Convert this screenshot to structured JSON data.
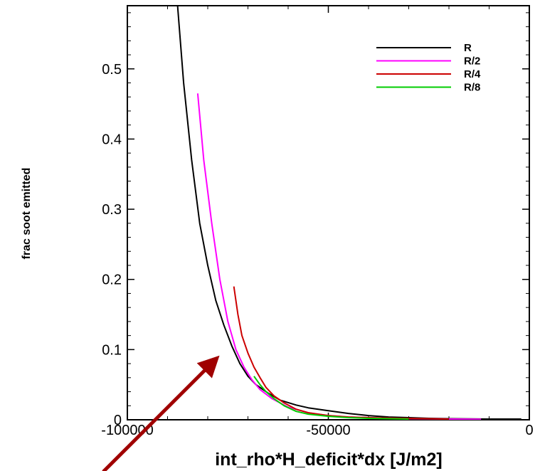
{
  "chart_data": {
    "type": "line",
    "xlabel": "int_rho*H_deficit*dx [J/m2]",
    "ylabel": "frac soot emitted",
    "xlim": [
      -100000,
      0
    ],
    "ylim": [
      0,
      0.59
    ],
    "x_ticks": [
      {
        "value": -100000,
        "label": "-100000"
      },
      {
        "value": -50000,
        "label": "-50000"
      },
      {
        "value": 0,
        "label": "0"
      }
    ],
    "y_ticks": [
      {
        "value": 0,
        "label": "0"
      },
      {
        "value": 0.1,
        "label": "0.1"
      },
      {
        "value": 0.2,
        "label": "0.2"
      },
      {
        "value": 0.3,
        "label": "0.3"
      },
      {
        "value": 0.4,
        "label": "0.4"
      },
      {
        "value": 0.5,
        "label": "0.5"
      }
    ],
    "grid": false,
    "legend_position": "top-right",
    "series": [
      {
        "name": "R",
        "color": "#000000",
        "points": [
          [
            -87500,
            0.59
          ],
          [
            -86000,
            0.48
          ],
          [
            -84000,
            0.37
          ],
          [
            -82000,
            0.28
          ],
          [
            -80000,
            0.22
          ],
          [
            -78000,
            0.17
          ],
          [
            -76000,
            0.135
          ],
          [
            -74000,
            0.105
          ],
          [
            -72000,
            0.08
          ],
          [
            -70000,
            0.062
          ],
          [
            -68000,
            0.05
          ],
          [
            -65000,
            0.038
          ],
          [
            -62000,
            0.028
          ],
          [
            -58000,
            0.021
          ],
          [
            -55000,
            0.017
          ],
          [
            -50000,
            0.013
          ],
          [
            -45000,
            0.009
          ],
          [
            -40000,
            0.006
          ],
          [
            -35000,
            0.004
          ],
          [
            -30000,
            0.003
          ],
          [
            -25000,
            0.002
          ],
          [
            -20000,
            0.0015
          ],
          [
            -10000,
            0.001
          ],
          [
            -2000,
            0.001
          ]
        ]
      },
      {
        "name": "R/2",
        "color": "#ff00ff",
        "points": [
          [
            -82500,
            0.465
          ],
          [
            -81000,
            0.37
          ],
          [
            -79000,
            0.28
          ],
          [
            -77000,
            0.2
          ],
          [
            -75000,
            0.14
          ],
          [
            -73000,
            0.1
          ],
          [
            -71000,
            0.075
          ],
          [
            -69000,
            0.057
          ],
          [
            -67000,
            0.043
          ],
          [
            -64000,
            0.03
          ],
          [
            -60000,
            0.018
          ],
          [
            -55000,
            0.01
          ],
          [
            -50000,
            0.006
          ],
          [
            -45000,
            0.004
          ],
          [
            -40000,
            0.003
          ],
          [
            -30000,
            0.0015
          ],
          [
            -20000,
            0.001
          ],
          [
            -12000,
            0.0008
          ]
        ]
      },
      {
        "name": "R/4",
        "color": "#cc0000",
        "points": [
          [
            -73500,
            0.19
          ],
          [
            -72500,
            0.15
          ],
          [
            -71500,
            0.12
          ],
          [
            -70000,
            0.095
          ],
          [
            -68500,
            0.075
          ],
          [
            -67000,
            0.06
          ],
          [
            -65500,
            0.046
          ],
          [
            -63500,
            0.034
          ],
          [
            -61000,
            0.024
          ],
          [
            -58000,
            0.015
          ],
          [
            -55000,
            0.01
          ],
          [
            -50000,
            0.006
          ],
          [
            -45000,
            0.004
          ],
          [
            -40000,
            0.003
          ],
          [
            -32000,
            0.002
          ],
          [
            -25000,
            0.0015
          ],
          [
            -20000,
            0.001
          ]
        ]
      },
      {
        "name": "R/8",
        "color": "#00cc00",
        "points": [
          [
            -68500,
            0.062
          ],
          [
            -67000,
            0.05
          ],
          [
            -65500,
            0.04
          ],
          [
            -63500,
            0.03
          ],
          [
            -61000,
            0.02
          ],
          [
            -58000,
            0.012
          ],
          [
            -55000,
            0.008
          ],
          [
            -50000,
            0.005
          ],
          [
            -45000,
            0.003
          ],
          [
            -40000,
            0.002
          ],
          [
            -35000,
            0.0015
          ],
          [
            -30000,
            0.001
          ]
        ]
      }
    ],
    "annotation": {
      "type": "arrow",
      "color": "#a00000",
      "from_value": [
        -106000,
        -0.074
      ],
      "to_value": [
        -78200,
        0.085
      ]
    }
  }
}
